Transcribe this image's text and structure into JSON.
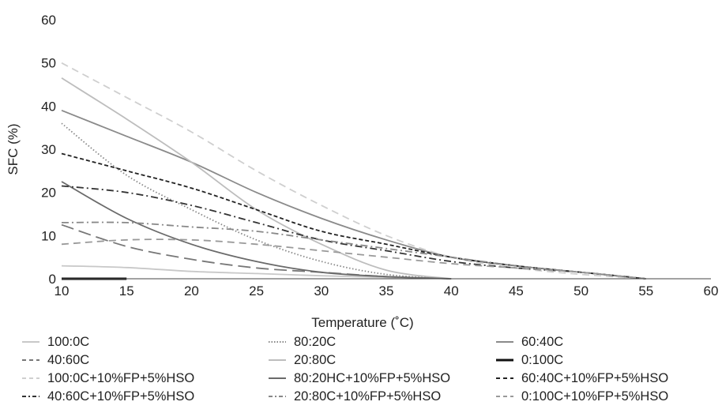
{
  "chart_data": {
    "type": "line",
    "xlabel": "Temperature (˚C)",
    "ylabel": "SFC (%)",
    "xlim": [
      10,
      60
    ],
    "ylim": [
      0,
      60
    ],
    "xticks": [
      10,
      15,
      20,
      25,
      30,
      35,
      40,
      45,
      50,
      55,
      60
    ],
    "yticks": [
      0,
      10,
      20,
      30,
      40,
      50,
      60
    ],
    "grid": false,
    "legend_position": "bottom",
    "series": [
      {
        "name": "100:0C",
        "color": "#c8c8c8",
        "dash": "solid",
        "x": [
          10,
          15,
          20,
          25,
          30,
          35,
          40
        ],
        "y": [
          3,
          2.6,
          1.7,
          1.2,
          0.7,
          0.3,
          0
        ]
      },
      {
        "name": "80:20C",
        "color": "#888888",
        "dash": "dot",
        "x": [
          10,
          15,
          20,
          25,
          30,
          35,
          40
        ],
        "y": [
          36,
          24,
          16,
          9,
          4,
          1,
          0
        ]
      },
      {
        "name": "60:40C",
        "color": "#8a8a8a",
        "dash": "solid",
        "x": [
          10,
          15,
          20,
          25,
          30,
          35,
          40,
          45,
          50,
          55
        ],
        "y": [
          39,
          33,
          27,
          20,
          14,
          9,
          5,
          3,
          1.5,
          0
        ]
      },
      {
        "name": "40:60C",
        "color": "#777777",
        "dash": "longdash",
        "x": [
          10,
          15,
          20,
          25,
          30,
          35,
          40
        ],
        "y": [
          12.5,
          7.5,
          4.5,
          2.5,
          1.5,
          0.5,
          0
        ]
      },
      {
        "name": "20:80C",
        "color": "#bdbdbd",
        "dash": "solid",
        "x": [
          10,
          15,
          20,
          25,
          30,
          35,
          40
        ],
        "y": [
          46.5,
          37,
          27,
          16,
          8,
          2,
          0
        ]
      },
      {
        "name": "0:100C",
        "color": "#111111",
        "dash": "solid",
        "x": [
          10,
          15
        ],
        "y": [
          0,
          0
        ]
      },
      {
        "name": "100:0C+10%FP+5%HSO",
        "color": "#cfcfcf",
        "dash": "dash",
        "x": [
          10,
          15,
          20,
          25,
          30,
          35,
          40,
          45,
          50,
          55
        ],
        "y": [
          50,
          42,
          34,
          25,
          17,
          10,
          5,
          2.5,
          1,
          0
        ]
      },
      {
        "name": "80:20HC+10%FP+5%HSO",
        "color": "#6a6a6a",
        "dash": "solid",
        "x": [
          10,
          15,
          20,
          25,
          30,
          35,
          40
        ],
        "y": [
          22.5,
          14,
          8,
          4,
          1.5,
          0.5,
          0
        ]
      },
      {
        "name": "60:40C+10%FP+5%HSO",
        "color": "#222222",
        "dash": "shortdash",
        "x": [
          10,
          15,
          20,
          25,
          30,
          35,
          40,
          45,
          50,
          55
        ],
        "y": [
          29,
          25,
          21,
          16,
          11,
          8,
          5,
          3,
          1.5,
          0
        ]
      },
      {
        "name": "40:60C+10%FP+5%HSO",
        "color": "#333333",
        "dash": "dashdot",
        "x": [
          10,
          15,
          20,
          25,
          30,
          35,
          40,
          45,
          50,
          55
        ],
        "y": [
          21.5,
          20,
          17,
          13,
          9,
          6.5,
          4,
          2.5,
          1.5,
          0
        ]
      },
      {
        "name": "20:80C+10%FP+5%HSO",
        "color": "#888888",
        "dash": "dashdot",
        "x": [
          10,
          15,
          20,
          25,
          30,
          35,
          40,
          45,
          50,
          55
        ],
        "y": [
          13,
          13,
          12,
          11,
          9,
          7,
          5,
          3,
          1.5,
          0
        ]
      },
      {
        "name": "0:100C+10%FP+5%HSO",
        "color": "#999999",
        "dash": "dash",
        "x": [
          10,
          15,
          20,
          25,
          30,
          35,
          40,
          45,
          50,
          55
        ],
        "y": [
          8,
          9,
          9,
          8,
          6.5,
          5,
          3.5,
          2.5,
          1.5,
          0
        ]
      }
    ]
  }
}
